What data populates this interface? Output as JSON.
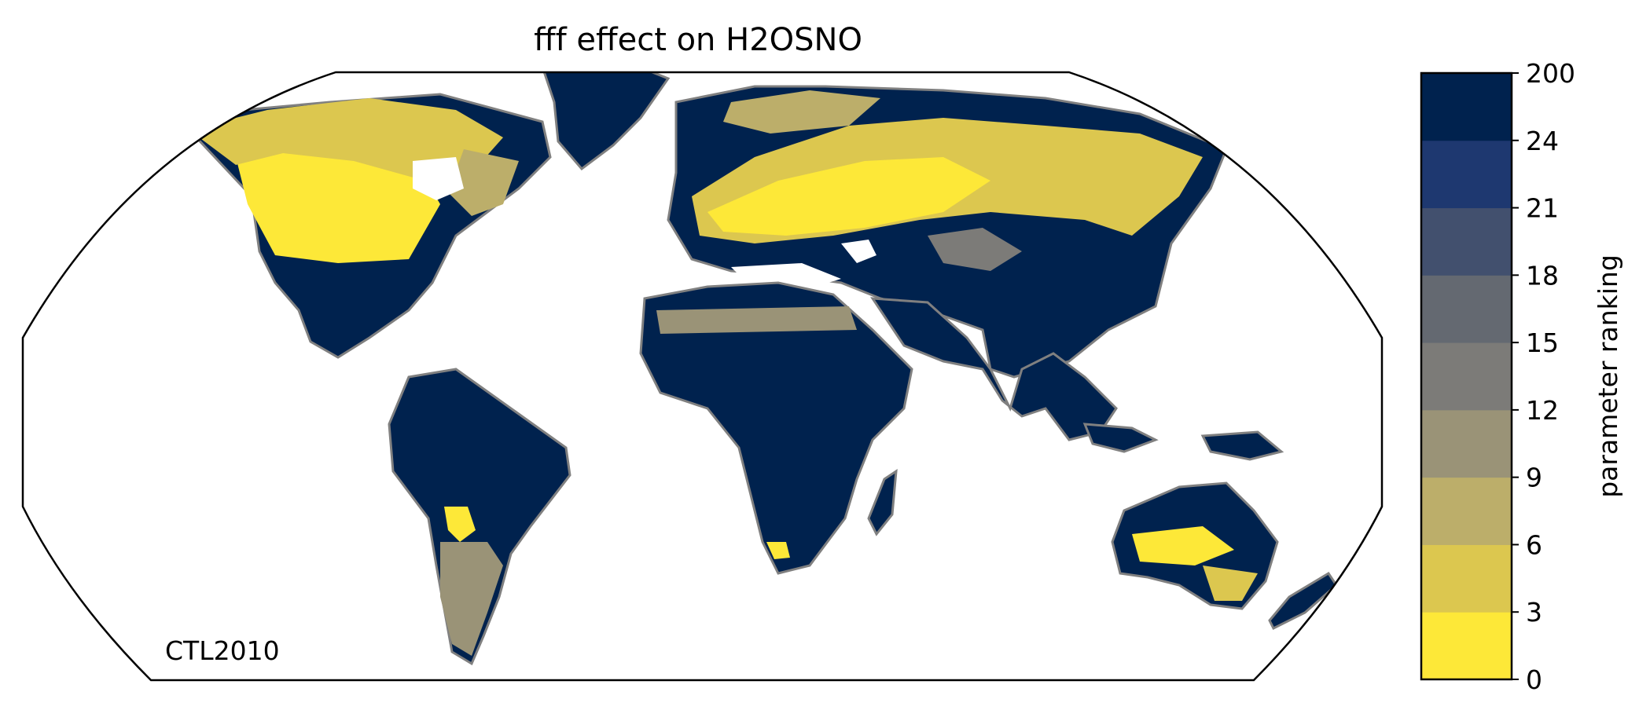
{
  "title": "fff effect on H2OSNO",
  "experiment_label": "CTL2010",
  "colorbar": {
    "label": "parameter ranking",
    "ticks": [
      "0",
      "3",
      "6",
      "9",
      "12",
      "15",
      "18",
      "21",
      "24",
      "200"
    ],
    "colors": [
      "#fde838",
      "#dcc74f",
      "#bcae6a",
      "#9a9377",
      "#7c7b78",
      "#646971",
      "#42506e",
      "#1e3870",
      "#00224e"
    ]
  },
  "map": {
    "projection": "robinson",
    "ocean_color": "#ffffff",
    "coastline_color": "#808080",
    "high_rank_color": "#00224e",
    "low_rank_color": "#fde838"
  }
}
